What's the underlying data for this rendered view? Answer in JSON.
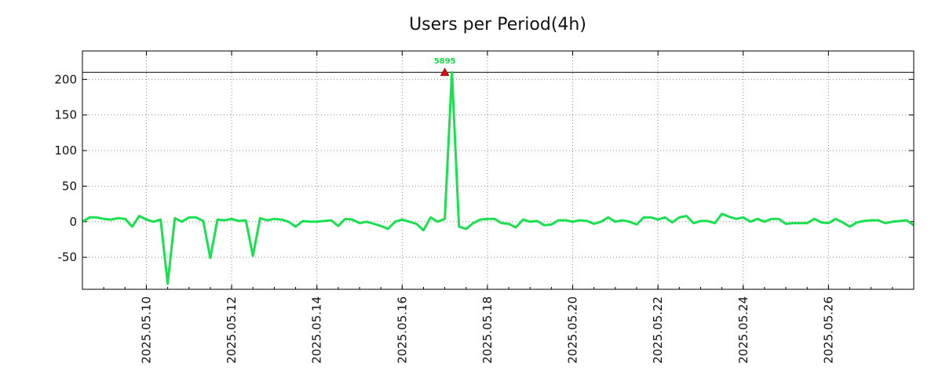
{
  "chart_data": {
    "type": "line",
    "title": "Users per Period(4h)",
    "xlabel": "",
    "ylabel": "",
    "xlim": [
      "2025.05.08 12:00",
      "2025.05.28 00:00"
    ],
    "ylim": [
      -95,
      240
    ],
    "yticks": [
      -50,
      0,
      50,
      100,
      150,
      200
    ],
    "xticks": [
      "2025.05.10",
      "2025.05.12",
      "2025.05.14",
      "2025.05.16",
      "2025.05.18",
      "2025.05.20",
      "2025.05.22",
      "2025.05.24",
      "2025.05.26"
    ],
    "grid": true,
    "reference_line": 210,
    "series": [
      {
        "color": "#19e04f",
        "x": [
          "2025.05.08 12:00",
          "2025.05.08 16:00",
          "2025.05.08 20:00",
          "2025.05.09 00:00",
          "2025.05.09 04:00",
          "2025.05.09 08:00",
          "2025.05.09 12:00",
          "2025.05.09 16:00",
          "2025.05.09 20:00",
          "2025.05.10 00:00",
          "2025.05.10 04:00",
          "2025.05.10 08:00",
          "2025.05.10 12:00",
          "2025.05.10 16:00",
          "2025.05.10 20:00",
          "2025.05.11 00:00",
          "2025.05.11 04:00",
          "2025.05.11 08:00",
          "2025.05.11 12:00",
          "2025.05.11 16:00",
          "2025.05.11 20:00",
          "2025.05.12 00:00",
          "2025.05.12 04:00",
          "2025.05.12 08:00",
          "2025.05.12 12:00",
          "2025.05.12 16:00",
          "2025.05.12 20:00",
          "2025.05.13 00:00",
          "2025.05.13 04:00",
          "2025.05.13 08:00",
          "2025.05.13 12:00",
          "2025.05.13 16:00",
          "2025.05.13 20:00",
          "2025.05.14 00:00",
          "2025.05.14 04:00",
          "2025.05.14 08:00",
          "2025.05.14 12:00",
          "2025.05.14 16:00",
          "2025.05.14 20:00",
          "2025.05.15 00:00",
          "2025.05.15 04:00",
          "2025.05.15 08:00",
          "2025.05.15 12:00",
          "2025.05.15 16:00",
          "2025.05.15 20:00",
          "2025.05.16 00:00",
          "2025.05.16 04:00",
          "2025.05.16 08:00",
          "2025.05.16 12:00",
          "2025.05.16 16:00",
          "2025.05.16 20:00",
          "2025.05.17 00:00",
          "2025.05.17 04:00",
          "2025.05.17 08:00",
          "2025.05.17 12:00",
          "2025.05.17 16:00",
          "2025.05.17 20:00",
          "2025.05.18 00:00",
          "2025.05.18 04:00",
          "2025.05.18 08:00",
          "2025.05.18 12:00",
          "2025.05.18 16:00",
          "2025.05.18 20:00",
          "2025.05.19 00:00",
          "2025.05.19 04:00",
          "2025.05.19 08:00",
          "2025.05.19 12:00",
          "2025.05.19 16:00",
          "2025.05.19 20:00",
          "2025.05.20 00:00",
          "2025.05.20 04:00",
          "2025.05.20 08:00",
          "2025.05.20 12:00",
          "2025.05.20 16:00",
          "2025.05.20 20:00",
          "2025.05.21 00:00",
          "2025.05.21 04:00",
          "2025.05.21 08:00",
          "2025.05.21 12:00",
          "2025.05.21 16:00",
          "2025.05.21 20:00",
          "2025.05.22 00:00",
          "2025.05.22 04:00",
          "2025.05.22 08:00",
          "2025.05.22 12:00",
          "2025.05.22 16:00",
          "2025.05.22 20:00",
          "2025.05.23 00:00",
          "2025.05.23 04:00",
          "2025.05.23 08:00",
          "2025.05.23 12:00",
          "2025.05.23 16:00",
          "2025.05.23 20:00",
          "2025.05.24 00:00",
          "2025.05.24 04:00",
          "2025.05.24 08:00",
          "2025.05.24 12:00",
          "2025.05.24 16:00",
          "2025.05.24 20:00",
          "2025.05.25 00:00",
          "2025.05.25 04:00",
          "2025.05.25 08:00",
          "2025.05.25 12:00",
          "2025.05.25 16:00",
          "2025.05.25 20:00",
          "2025.05.26 00:00",
          "2025.05.26 04:00",
          "2025.05.26 08:00",
          "2025.05.26 12:00",
          "2025.05.26 16:00",
          "2025.05.26 20:00",
          "2025.05.27 00:00",
          "2025.05.27 04:00",
          "2025.05.27 08:00",
          "2025.05.27 12:00",
          "2025.05.27 16:00",
          "2025.05.27 20:00",
          "2025.05.28 00:00"
        ],
        "y": [
          0,
          6,
          6,
          4,
          3,
          5,
          4,
          -7,
          8,
          3,
          0,
          3,
          -87,
          5,
          0,
          6,
          6,
          1,
          -51,
          3,
          2,
          4,
          1,
          2,
          -48,
          5,
          2,
          4,
          3,
          0,
          -7,
          1,
          0,
          0,
          1,
          2,
          -6,
          4,
          3,
          -2,
          0,
          -3,
          -6,
          -10,
          0,
          3,
          0,
          -3,
          -12,
          6,
          0,
          4,
          210,
          -7,
          -10,
          -2,
          3,
          4,
          4,
          -2,
          -3,
          -8,
          3,
          0,
          1,
          -5,
          -4,
          2,
          2,
          0,
          2,
          1,
          -3,
          0,
          6,
          0,
          2,
          0,
          -4,
          6,
          6,
          3,
          6,
          -1,
          6,
          8,
          -2,
          1,
          1,
          -2,
          11,
          7,
          4,
          6,
          0,
          4,
          0,
          4,
          4,
          -3,
          -2,
          -2,
          -2,
          4,
          -1,
          -2,
          4,
          -1,
          -7,
          -1,
          1,
          2,
          2,
          -2,
          0,
          1,
          2,
          -5
        ]
      }
    ],
    "annotations": [
      {
        "text": "5895",
        "x": "2025.05.17 00:00",
        "y": 210
      }
    ]
  }
}
